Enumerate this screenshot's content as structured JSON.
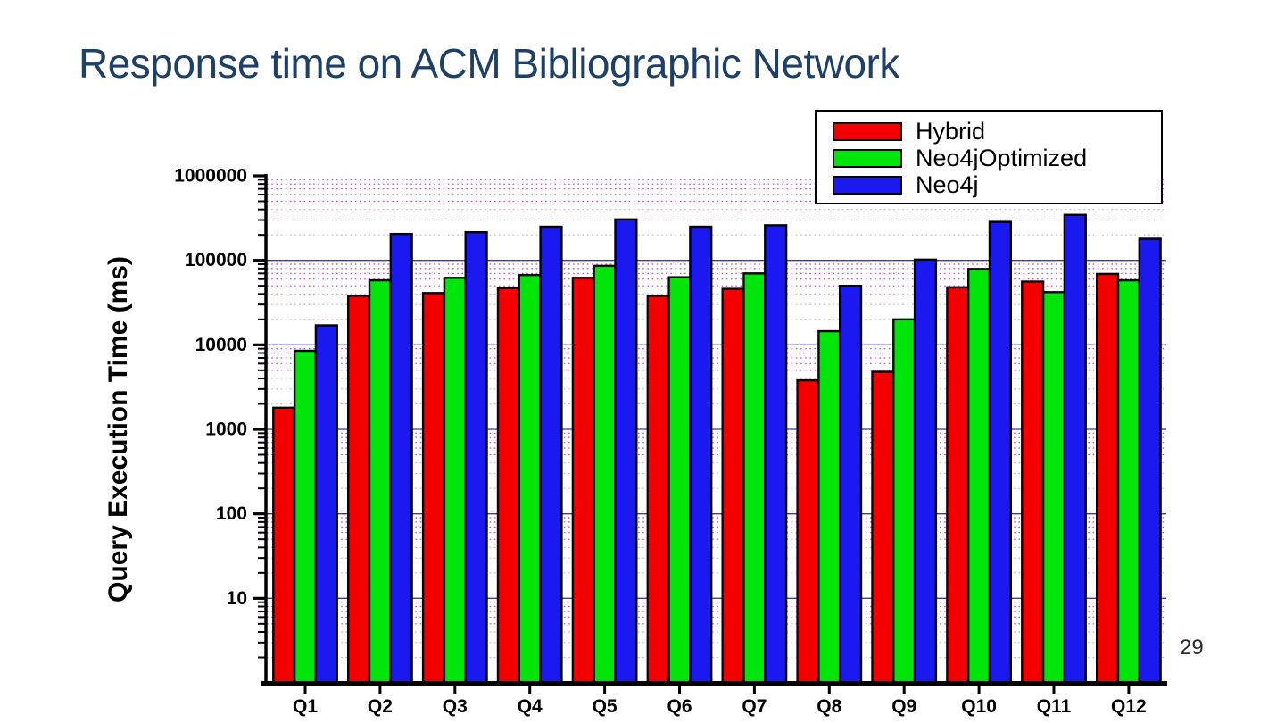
{
  "title": "Response time on ACM Bibliographic Network",
  "page_number": "29",
  "title_color": "#1f4066",
  "chart_data": {
    "type": "bar",
    "title": "Response time on ACM Bibliographic Network",
    "xlabel": "",
    "ylabel": "Query Execution Time (ms)",
    "y_scale": "log",
    "ylim": [
      1,
      1000000
    ],
    "ytick_labels": [
      "10",
      "100",
      "1000",
      "10000",
      "100000",
      "1000000"
    ],
    "ytick_values": [
      10,
      100,
      1000,
      10000,
      100000,
      1000000
    ],
    "grid": {
      "major": true,
      "minor": true,
      "major_color": "#3c3c96",
      "minor_color_bright": "#cc22cc",
      "minor_color_light": "#bb88bb"
    },
    "legend_position": "top-right",
    "categories": [
      "Q1",
      "Q2",
      "Q3",
      "Q4",
      "Q5",
      "Q6",
      "Q7",
      "Q8",
      "Q9",
      "Q10",
      "Q11",
      "Q12"
    ],
    "series": [
      {
        "name": "Hybrid",
        "color": "#f40000",
        "values": [
          1800,
          38000,
          41000,
          47000,
          62000,
          38000,
          46000,
          3800,
          4800,
          48000,
          56000,
          69000
        ]
      },
      {
        "name": "Neo4jOptimized",
        "color": "#00e60a",
        "values": [
          8500,
          58000,
          62000,
          67000,
          86000,
          63000,
          70000,
          14500,
          20000,
          79000,
          42000,
          58000
        ]
      },
      {
        "name": "Neo4j",
        "color": "#1a1af0",
        "values": [
          17000,
          205000,
          215000,
          250000,
          305000,
          250000,
          260000,
          50000,
          102000,
          285000,
          345000,
          180000
        ]
      }
    ]
  }
}
